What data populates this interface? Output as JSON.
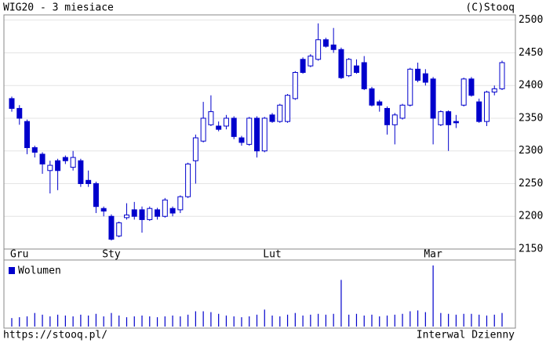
{
  "chart_data": {
    "type": "candlestick",
    "title": "WIG20 - 3 miesiace",
    "copyright": "(C)Stooq",
    "source": "https://stooq.pl/",
    "interval": "Interwal Dzienny",
    "categories": [
      null,
      "Gru",
      null,
      null,
      null,
      null,
      null,
      null,
      null,
      null,
      null,
      null,
      null,
      "Sty",
      null,
      null,
      null,
      null,
      null,
      null,
      null,
      null,
      null,
      null,
      null,
      null,
      null,
      null,
      null,
      null,
      null,
      null,
      null,
      null,
      "Lut",
      null,
      null,
      null,
      null,
      null,
      null,
      null,
      null,
      null,
      null,
      null,
      null,
      null,
      null,
      null,
      null,
      null,
      null,
      null,
      null,
      "Mar",
      null,
      null,
      null,
      null,
      null,
      null,
      null,
      null,
      null
    ],
    "open": [
      2380,
      2365,
      2345,
      2305,
      2295,
      2270,
      2285,
      2290,
      2275,
      2285,
      2255,
      2250,
      2212,
      2200,
      2170,
      2198,
      2210,
      2210,
      2195,
      2210,
      2200,
      2212,
      2210,
      2230,
      2285,
      2315,
      2340,
      2338,
      2338,
      2350,
      2320,
      2310,
      2350,
      2300,
      2355,
      2345,
      2345,
      2380,
      2440,
      2430,
      2440,
      2470,
      2462,
      2455,
      2415,
      2430,
      2435,
      2395,
      2375,
      2365,
      2340,
      2350,
      2370,
      2425,
      2418,
      2410,
      2340,
      2360,
      2345,
      2370,
      2410,
      2375,
      2345,
      2390,
      2395
    ],
    "high": [
      2383,
      2370,
      2348,
      2308,
      2298,
      2285,
      2288,
      2293,
      2300,
      2288,
      2270,
      2253,
      2215,
      2203,
      2192,
      2220,
      2222,
      2215,
      2215,
      2213,
      2228,
      2215,
      2232,
      2282,
      2325,
      2375,
      2385,
      2345,
      2355,
      2353,
      2323,
      2352,
      2353,
      2352,
      2358,
      2372,
      2387,
      2422,
      2443,
      2448,
      2495,
      2473,
      2488,
      2458,
      2442,
      2440,
      2445,
      2398,
      2378,
      2368,
      2358,
      2372,
      2427,
      2435,
      2425,
      2413,
      2362,
      2362,
      2355,
      2412,
      2413,
      2380,
      2392,
      2400,
      2438
    ],
    "low": [
      2360,
      2340,
      2295,
      2290,
      2265,
      2235,
      2240,
      2280,
      2270,
      2245,
      2245,
      2205,
      2200,
      2163,
      2168,
      2195,
      2195,
      2175,
      2193,
      2195,
      2198,
      2200,
      2205,
      2228,
      2250,
      2313,
      2338,
      2330,
      2333,
      2318,
      2308,
      2308,
      2290,
      2298,
      2343,
      2343,
      2343,
      2378,
      2418,
      2428,
      2438,
      2458,
      2450,
      2410,
      2413,
      2418,
      2393,
      2368,
      2360,
      2325,
      2310,
      2348,
      2368,
      2405,
      2400,
      2310,
      2338,
      2300,
      2335,
      2368,
      2383,
      2343,
      2338,
      2385,
      2393
    ],
    "close": [
      2365,
      2350,
      2305,
      2298,
      2280,
      2278,
      2270,
      2285,
      2290,
      2250,
      2250,
      2215,
      2208,
      2165,
      2190,
      2202,
      2200,
      2195,
      2212,
      2200,
      2225,
      2205,
      2230,
      2280,
      2320,
      2350,
      2360,
      2333,
      2350,
      2322,
      2313,
      2350,
      2300,
      2350,
      2345,
      2370,
      2385,
      2420,
      2420,
      2445,
      2470,
      2460,
      2455,
      2412,
      2440,
      2420,
      2395,
      2370,
      2370,
      2340,
      2355,
      2370,
      2425,
      2408,
      2405,
      2350,
      2360,
      2340,
      2343,
      2410,
      2385,
      2345,
      2390,
      2395,
      2435
    ],
    "color": "#0000cc",
    "ylim": [
      2150,
      2508
    ],
    "yticks": [
      2150,
      2200,
      2250,
      2300,
      2350,
      2400,
      2450,
      2500
    ],
    "grid": true,
    "volume": {
      "name": "Wolumen",
      "color": "#0000cc",
      "values": [
        10,
        11,
        12,
        16,
        14,
        12,
        14,
        13,
        12,
        14,
        13,
        15,
        12,
        16,
        13,
        11,
        12,
        13,
        12,
        11,
        12,
        13,
        12,
        14,
        18,
        18,
        17,
        15,
        13,
        12,
        11,
        12,
        14,
        20,
        13,
        12,
        14,
        16,
        13,
        14,
        15,
        14,
        15,
        55,
        14,
        15,
        13,
        14,
        12,
        13,
        14,
        15,
        18,
        19,
        17,
        72,
        16,
        15,
        14,
        15,
        15,
        14,
        13,
        14,
        16
      ]
    }
  }
}
